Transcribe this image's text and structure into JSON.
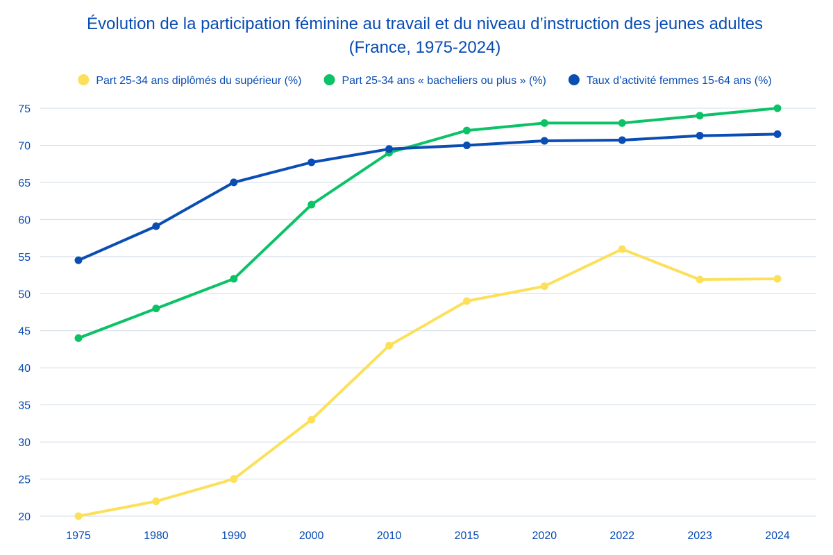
{
  "chart_data": {
    "type": "line",
    "title_lines": [
      "Évolution de la participation féminine au travail et du niveau d’instruction des jeunes adultes",
      "(France, 1975-2024)"
    ],
    "xlabel": "",
    "ylabel": "",
    "categories": [
      "1975",
      "1980",
      "1990",
      "2000",
      "2010",
      "2015",
      "2020",
      "2022",
      "2023",
      "2024"
    ],
    "ylim": [
      20,
      75
    ],
    "yticks": [
      20,
      25,
      30,
      35,
      40,
      45,
      50,
      55,
      60,
      65,
      70,
      75
    ],
    "grid": true,
    "legend_position": "top",
    "series": [
      {
        "name": "Part 25-34 ans diplômés du supérieur (%)",
        "color": "#FCE05A",
        "values": [
          20,
          22,
          25,
          33,
          43,
          49,
          51,
          56,
          51.9,
          52
        ]
      },
      {
        "name": "Part 25-34 ans « bacheliers ou plus » (%)",
        "color": "#0CC266",
        "values": [
          44,
          48,
          52,
          62,
          69,
          72,
          73,
          73,
          74,
          75
        ]
      },
      {
        "name": "Taux d’activité femmes 15-64 ans (%)",
        "color": "#0A4DB3",
        "values": [
          54.5,
          59.1,
          65,
          67.7,
          69.5,
          70,
          70.6,
          70.7,
          71.3,
          71.5
        ]
      }
    ]
  },
  "colors": {
    "text": "#0A4DB3",
    "grid": "#D0DCE8",
    "background": "#FFFFFF"
  }
}
